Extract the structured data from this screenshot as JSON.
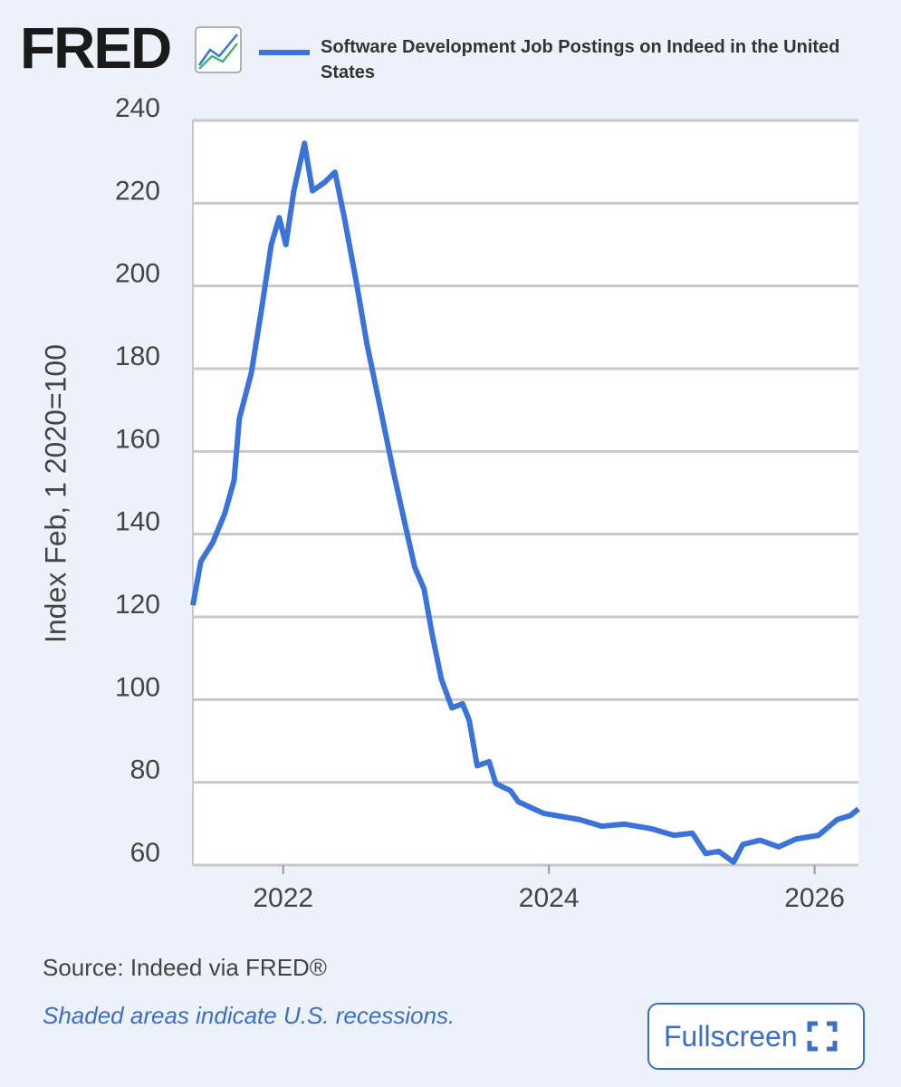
{
  "logo": "FRED",
  "chart_data": {
    "type": "line",
    "ylabel": "Index Feb, 1 2020=100",
    "x": [
      2021.32,
      2021.38,
      2021.47,
      2021.56,
      2021.63,
      2021.67,
      2021.76,
      2021.84,
      2021.91,
      2021.97,
      2022.02,
      2022.08,
      2022.16,
      2022.22,
      2022.31,
      2022.39,
      2022.46,
      2022.55,
      2022.63,
      2022.73,
      2022.83,
      2022.92,
      2022.99,
      2023.06,
      2023.12,
      2023.19,
      2023.27,
      2023.35,
      2023.4,
      2023.46,
      2023.55,
      2023.6,
      2023.71,
      2023.77,
      2023.96,
      2024.23,
      2024.4,
      2024.57,
      2024.77,
      2024.94,
      2025.08,
      2025.18,
      2025.28,
      2025.39,
      2025.46,
      2025.59,
      2025.73,
      2025.86,
      2026.03,
      2026.17,
      2026.27,
      2026.33
    ],
    "series": [
      {
        "name": "Software Development Job Postings on Indeed in the United States",
        "color": "#3a73d9",
        "values": [
          122.8,
          133.4,
          138,
          145,
          153,
          168,
          179,
          195,
          210,
          216.5,
          210,
          223,
          234.5,
          223,
          225,
          227.5,
          216.5,
          201,
          186,
          170.6,
          155,
          142,
          132,
          126.8,
          116,
          105,
          98,
          99,
          95,
          84,
          85,
          79.7,
          78,
          75.3,
          72.5,
          71,
          69.4,
          69.9,
          68.8,
          67.2,
          67.7,
          62.8,
          63.3,
          60.7,
          65,
          66,
          64.4,
          66.3,
          67.2,
          71,
          72,
          73.6
        ]
      }
    ],
    "xlim": [
      2021.32,
      2026.33
    ],
    "xticks": [
      2022,
      2024,
      2026
    ],
    "ylim": [
      60,
      240
    ],
    "yticks": [
      60,
      80,
      100,
      120,
      140,
      160,
      180,
      200,
      220,
      240
    ],
    "grid": true
  },
  "footer": {
    "source": "Source: Indeed via FRED®",
    "note": "Shaded areas indicate U.S. recessions.",
    "button": "Fullscreen"
  }
}
